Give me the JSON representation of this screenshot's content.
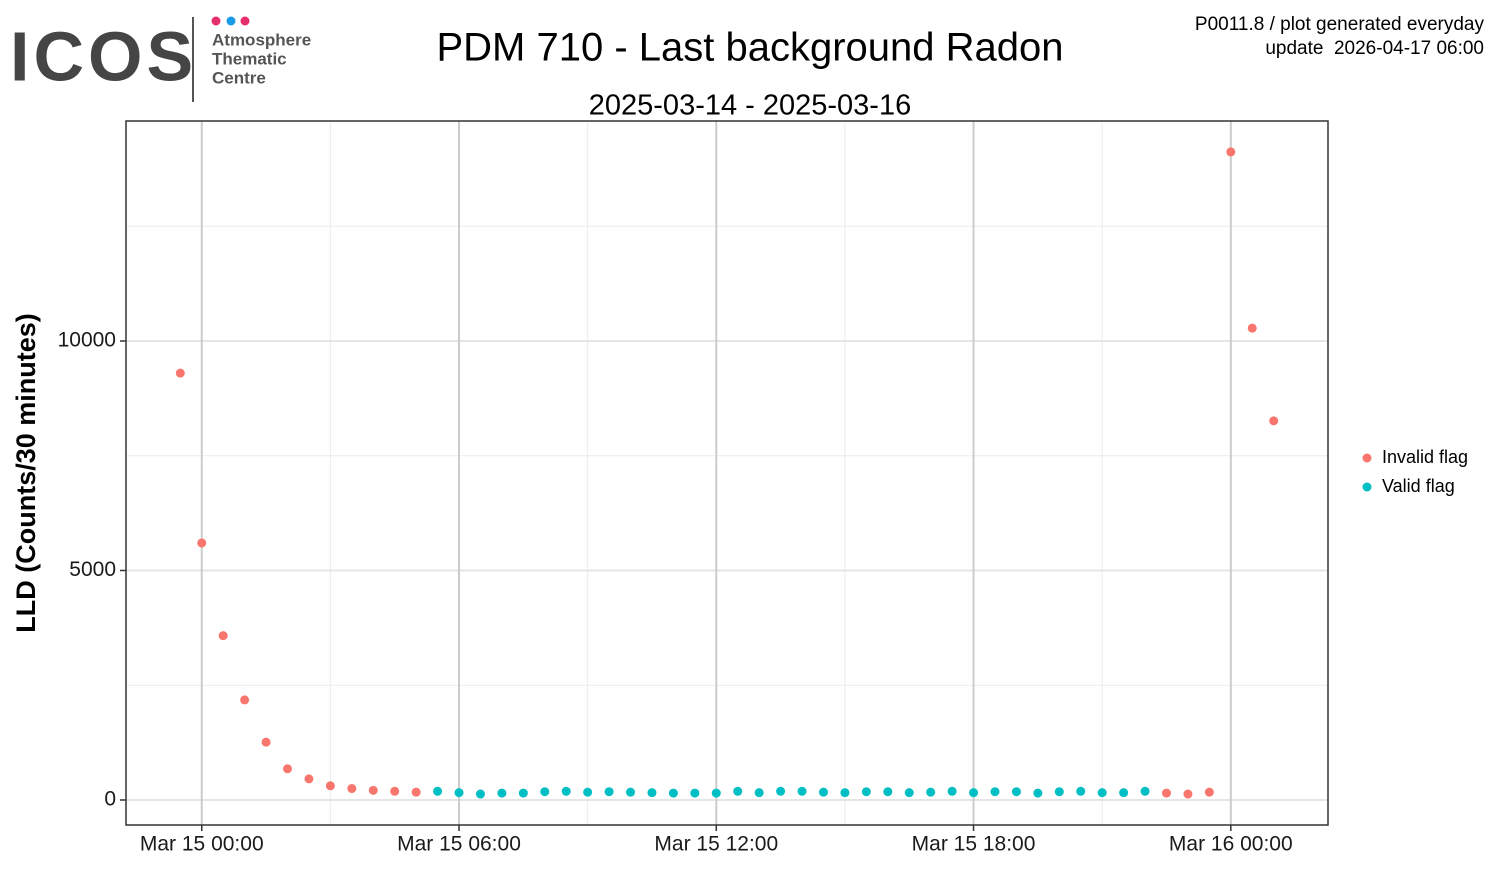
{
  "header": {
    "logo": {
      "name": "ICOS",
      "lines": [
        "Atmosphere",
        "Thematic",
        "Centre"
      ]
    },
    "notes": [
      "P0011.8 / plot generated everyday",
      "update  2026-04-17 06:00"
    ]
  },
  "chart_data": {
    "type": "scatter",
    "title": "PDM 710 - Last background Radon",
    "subtitle": "2025-03-14 - 2025-03-16",
    "y_label": "LLD (Counts/30 minutes)",
    "xlim": [
      "Mar 14 22:14",
      "Mar 16 02:16"
    ],
    "xticks": [
      "Mar 15 00:00",
      "Mar 15 06:00",
      "Mar 15 12:00",
      "Mar 15 18:00",
      "Mar 16 00:00"
    ],
    "xminorticks": [
      "Mar 15 03:00",
      "Mar 15 09:00",
      "Mar 15 15:00",
      "Mar 15 21:00"
    ],
    "ylim": [
      -545,
      14793
    ],
    "yticks": [
      0,
      5000,
      10000
    ],
    "yminorticks": [
      2500,
      7500,
      12500
    ],
    "grid": true,
    "legend": "right",
    "series": [
      {
        "name": "Invalid flag",
        "color": "#F8766D",
        "x": [
          "Mar 14 23:30",
          "Mar 15 00:00",
          "Mar 15 00:30",
          "Mar 15 01:00",
          "Mar 15 01:30",
          "Mar 15 02:00",
          "Mar 15 02:30",
          "Mar 15 03:00",
          "Mar 15 03:30",
          "Mar 15 04:00",
          "Mar 15 04:30",
          "Mar 15 05:00",
          "Mar 15 22:30",
          "Mar 15 23:00",
          "Mar 15 23:30",
          "Mar 16 00:00",
          "Mar 16 00:30",
          "Mar 16 01:00"
        ],
        "values": [
          9300,
          5600,
          3580,
          2180,
          1260,
          680,
          460,
          310,
          250,
          210,
          190,
          170,
          150,
          130,
          170,
          14120,
          10280,
          8260
        ]
      },
      {
        "name": "Valid flag",
        "color": "#00BFC4",
        "x": [
          "Mar 15 05:30",
          "Mar 15 06:00",
          "Mar 15 06:30",
          "Mar 15 07:00",
          "Mar 15 07:30",
          "Mar 15 08:00",
          "Mar 15 08:30",
          "Mar 15 09:00",
          "Mar 15 09:30",
          "Mar 15 10:00",
          "Mar 15 10:30",
          "Mar 15 11:00",
          "Mar 15 11:30",
          "Mar 15 12:00",
          "Mar 15 12:30",
          "Mar 15 13:00",
          "Mar 15 13:30",
          "Mar 15 14:00",
          "Mar 15 14:30",
          "Mar 15 15:00",
          "Mar 15 15:30",
          "Mar 15 16:00",
          "Mar 15 16:30",
          "Mar 15 17:00",
          "Mar 15 17:30",
          "Mar 15 18:00",
          "Mar 15 18:30",
          "Mar 15 19:00",
          "Mar 15 19:30",
          "Mar 15 20:00",
          "Mar 15 20:30",
          "Mar 15 21:00",
          "Mar 15 21:30",
          "Mar 15 22:00"
        ],
        "values": [
          190,
          160,
          130,
          150,
          150,
          180,
          190,
          170,
          180,
          170,
          160,
          150,
          150,
          150,
          190,
          160,
          190,
          190,
          170,
          160,
          180,
          180,
          160,
          170,
          190,
          160,
          180,
          180,
          150,
          180,
          190,
          160,
          160,
          190
        ]
      }
    ]
  }
}
